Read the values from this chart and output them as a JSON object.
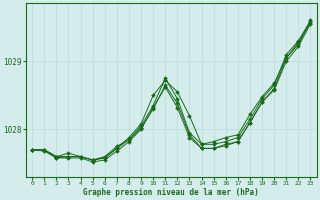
{
  "title": "Graphe pression niveau de la mer (hPa)",
  "x_values": [
    0,
    1,
    2,
    3,
    4,
    5,
    6,
    7,
    8,
    9,
    10,
    11,
    12,
    13,
    14,
    15,
    16,
    17,
    18,
    19,
    20,
    21,
    22,
    23
  ],
  "series": [
    [
      1027.7,
      1027.7,
      1027.6,
      1027.65,
      1027.6,
      1027.55,
      1027.6,
      1027.75,
      1027.85,
      1028.05,
      1028.35,
      1028.75,
      1028.45,
      1027.95,
      1027.78,
      1027.78,
      1027.82,
      1027.88,
      1028.15,
      1028.45,
      1028.65,
      1029.1,
      1029.3,
      1029.6
    ],
    [
      1027.7,
      1027.7,
      1027.58,
      1027.6,
      1027.6,
      1027.55,
      1027.58,
      1027.72,
      1027.88,
      1028.08,
      1028.5,
      1028.72,
      1028.55,
      1028.2,
      1027.78,
      1027.82,
      1027.88,
      1027.92,
      1028.22,
      1028.48,
      1028.68,
      1029.05,
      1029.28,
      1029.58
    ],
    [
      1027.7,
      1027.68,
      1027.58,
      1027.58,
      1027.58,
      1027.52,
      1027.55,
      1027.68,
      1027.82,
      1028.0,
      1028.32,
      1028.62,
      1028.32,
      1027.88,
      1027.72,
      1027.72,
      1027.78,
      1027.82,
      1028.1,
      1028.4,
      1028.58,
      1029.0,
      1029.22,
      1029.55
    ],
    [
      1027.7,
      1027.7,
      1027.6,
      1027.6,
      1027.6,
      1027.55,
      1027.58,
      1027.72,
      1027.85,
      1028.02,
      1028.3,
      1028.65,
      1028.38,
      1027.92,
      1027.72,
      1027.72,
      1027.76,
      1027.82,
      1028.1,
      1028.4,
      1028.6,
      1029.05,
      1029.25,
      1029.58
    ]
  ],
  "line_color": "#1a6b1a",
  "marker_color": "#1a6b1a",
  "bg_color": "#d4ecec",
  "grid_color": "#b8d8d8",
  "axis_label_color": "#1a6b1a",
  "tick_label_color": "#1a6b1a",
  "ylabel_ticks": [
    1028,
    1029
  ],
  "ylim": [
    1027.3,
    1029.85
  ],
  "xlim": [
    -0.5,
    23.5
  ]
}
